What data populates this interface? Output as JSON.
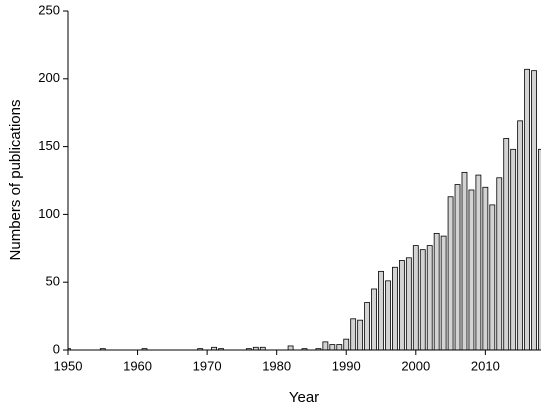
{
  "chart_data": {
    "type": "bar",
    "x_label": "Year",
    "y_label": "Numbers of publications",
    "x": [
      1950,
      1955,
      1961,
      1969,
      1971,
      1972,
      1976,
      1977,
      1978,
      1982,
      1984,
      1986,
      1987,
      1988,
      1989,
      1990,
      1991,
      1992,
      1993,
      1994,
      1995,
      1996,
      1997,
      1998,
      1999,
      2000,
      2001,
      2002,
      2003,
      2004,
      2005,
      2006,
      2007,
      2008,
      2009,
      2010,
      2011,
      2012,
      2013,
      2014,
      2015,
      2016,
      2017,
      2018
    ],
    "values": [
      1,
      1,
      1,
      1,
      2,
      1,
      1,
      2,
      2,
      3,
      1,
      1,
      6,
      4,
      4,
      8,
      23,
      22,
      35,
      45,
      58,
      51,
      61,
      66,
      68,
      77,
      74,
      77,
      86,
      84,
      113,
      122,
      131,
      118,
      129,
      120,
      107,
      127,
      156,
      148,
      169,
      207,
      206,
      148
    ],
    "color": "#d3d3d3",
    "xlim": [
      1950,
      2018
    ],
    "xticks": [
      1950,
      1960,
      1970,
      1980,
      1990,
      2000,
      2010
    ],
    "ylim": [
      0,
      250
    ],
    "yticks": [
      0,
      50,
      100,
      150,
      200,
      250
    ]
  }
}
